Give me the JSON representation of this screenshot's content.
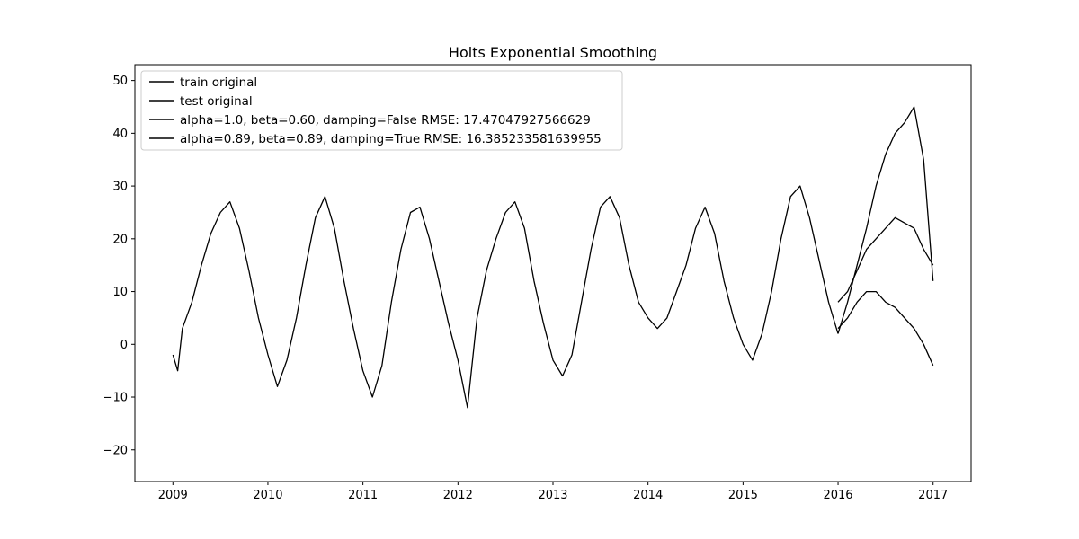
{
  "chart_data": {
    "type": "line",
    "title": "Holts Exponential Smoothing",
    "xlabel": "",
    "ylabel": "",
    "xlim": [
      2008.6,
      2017.4
    ],
    "ylim": [
      -26,
      53
    ],
    "x_ticks": [
      2009,
      2010,
      2011,
      2012,
      2013,
      2014,
      2015,
      2016,
      2017
    ],
    "x_tick_labels": [
      "2009",
      "2010",
      "2011",
      "2012",
      "2013",
      "2014",
      "2015",
      "2016",
      "2017"
    ],
    "y_ticks": [
      -20,
      -10,
      0,
      10,
      20,
      30,
      40,
      50
    ],
    "y_tick_labels": [
      "−20",
      "−10",
      "0",
      "10",
      "20",
      "30",
      "40",
      "50"
    ],
    "grid": false,
    "legend_position": "top-left",
    "series": [
      {
        "name": "train original",
        "color": "#000000",
        "x": [
          2009.0,
          2009.05,
          2009.1,
          2009.2,
          2009.3,
          2009.4,
          2009.5,
          2009.6,
          2009.7,
          2009.8,
          2009.9,
          2010.0,
          2010.1,
          2010.2,
          2010.3,
          2010.4,
          2010.5,
          2010.6,
          2010.7,
          2010.8,
          2010.9,
          2011.0,
          2011.1,
          2011.2,
          2011.3,
          2011.4,
          2011.5,
          2011.6,
          2011.7,
          2011.8,
          2011.9,
          2012.0,
          2012.1,
          2012.2,
          2012.3,
          2012.4,
          2012.5,
          2012.6,
          2012.7,
          2012.8,
          2012.9,
          2013.0,
          2013.1,
          2013.2,
          2013.3,
          2013.4,
          2013.5,
          2013.6,
          2013.7,
          2013.8,
          2013.9,
          2014.0,
          2014.1,
          2014.2,
          2014.3,
          2014.4,
          2014.5,
          2014.6,
          2014.7,
          2014.8,
          2014.9,
          2015.0,
          2015.1,
          2015.2,
          2015.3,
          2015.4,
          2015.5,
          2015.6,
          2015.7,
          2015.8,
          2015.9,
          2016.0
        ],
        "values": [
          -2,
          -5,
          3,
          8,
          15,
          21,
          25,
          27,
          22,
          14,
          5,
          -2,
          -8,
          -3,
          5,
          15,
          24,
          28,
          22,
          12,
          3,
          -5,
          -10,
          -4,
          8,
          18,
          25,
          26,
          20,
          12,
          4,
          -3,
          -12,
          5,
          14,
          20,
          25,
          27,
          22,
          12,
          4,
          -3,
          -6,
          -2,
          8,
          18,
          26,
          28,
          24,
          15,
          8,
          5,
          3,
          5,
          10,
          15,
          22,
          26,
          21,
          12,
          5,
          0,
          -3,
          2,
          10,
          20,
          28,
          30,
          24,
          16,
          8,
          2
        ]
      },
      {
        "name": "test original",
        "color": "#000000",
        "x": [
          2016.0,
          2016.1,
          2016.2,
          2016.3,
          2016.4,
          2016.5,
          2016.6,
          2016.7,
          2016.8,
          2016.9,
          2017.0
        ],
        "values": [
          2,
          8,
          15,
          22,
          30,
          36,
          40,
          42,
          45,
          35,
          12
        ]
      },
      {
        "name": "alpha=1.0, beta=0.60, damping=False RMSE: 17.47047927566629",
        "color": "#000000",
        "x": [
          2016.0,
          2016.1,
          2016.2,
          2016.3,
          2016.4,
          2016.5,
          2016.6,
          2016.7,
          2016.8,
          2016.9,
          2017.0
        ],
        "values": [
          8,
          10,
          14,
          18,
          20,
          22,
          24,
          23,
          22,
          18,
          15
        ]
      },
      {
        "name": "alpha=0.89, beta=0.89, damping=True RMSE: 16.385233581639955",
        "color": "#000000",
        "x": [
          2016.0,
          2016.1,
          2016.2,
          2016.3,
          2016.4,
          2016.5,
          2016.6,
          2016.7,
          2016.8,
          2016.9,
          2017.0
        ],
        "values": [
          3,
          5,
          8,
          10,
          10,
          8,
          7,
          5,
          3,
          0,
          -4
        ]
      }
    ]
  }
}
